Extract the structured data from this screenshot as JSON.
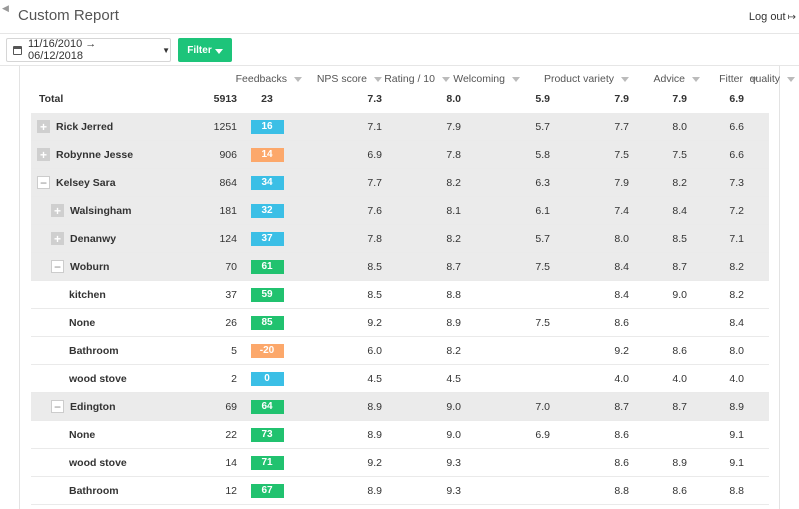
{
  "header": {
    "back_icon": "chevron-left-icon",
    "title": "Custom Report",
    "logout_label": "Log out",
    "logout_icon": "sign-out-icon"
  },
  "toolbar": {
    "date_range": "11/16/2010 → 06/12/2018",
    "filter_label": "Filter",
    "filter_button_color": "#1dc47a"
  },
  "columns": [
    "Feedbacks",
    "NPS score",
    "Rating / 10",
    "Welcoming",
    "Product variety",
    "Advice",
    "Fitter",
    "quality"
  ],
  "total": {
    "label": "Total",
    "feedbacks": "5913",
    "nps": "23",
    "rating": "7.3",
    "welcoming": "8.0",
    "variety": "5.9",
    "advice": "7.9",
    "fitter": "7.9",
    "quality": "6.9"
  },
  "nps_colors": {
    "blue": "#3bbfe6",
    "orange": "#fca86b",
    "green": "#21c26f"
  },
  "rows": [
    {
      "name": "Rick Jerred",
      "level": 0,
      "expander": "plus",
      "feedbacks": "1251",
      "nps": "16",
      "nps_color": "blue",
      "rating": "7.1",
      "welcoming": "7.9",
      "variety": "5.7",
      "advice": "7.7",
      "fitter": "8.0",
      "quality": "6.6"
    },
    {
      "name": "Robynne Jesse",
      "level": 0,
      "expander": "plus",
      "feedbacks": "906",
      "nps": "14",
      "nps_color": "orange",
      "rating": "6.9",
      "welcoming": "7.8",
      "variety": "5.8",
      "advice": "7.5",
      "fitter": "7.5",
      "quality": "6.6"
    },
    {
      "name": "Kelsey Sara",
      "level": 0,
      "expander": "minus",
      "feedbacks": "864",
      "nps": "34",
      "nps_color": "blue",
      "rating": "7.7",
      "welcoming": "8.2",
      "variety": "6.3",
      "advice": "7.9",
      "fitter": "8.2",
      "quality": "7.3"
    },
    {
      "name": "Walsingham",
      "level": 1,
      "expander": "plus",
      "feedbacks": "181",
      "nps": "32",
      "nps_color": "blue",
      "rating": "7.6",
      "welcoming": "8.1",
      "variety": "6.1",
      "advice": "7.4",
      "fitter": "8.4",
      "quality": "7.2"
    },
    {
      "name": "Denanwy",
      "level": 1,
      "expander": "plus",
      "feedbacks": "124",
      "nps": "37",
      "nps_color": "blue",
      "rating": "7.8",
      "welcoming": "8.2",
      "variety": "5.7",
      "advice": "8.0",
      "fitter": "8.5",
      "quality": "7.1"
    },
    {
      "name": "Woburn",
      "level": 1,
      "expander": "minus",
      "feedbacks": "70",
      "nps": "61",
      "nps_color": "green",
      "rating": "8.5",
      "welcoming": "8.7",
      "variety": "7.5",
      "advice": "8.4",
      "fitter": "8.7",
      "quality": "8.2"
    },
    {
      "name": "kitchen",
      "level": 2,
      "expander": "",
      "feedbacks": "37",
      "nps": "59",
      "nps_color": "green",
      "rating": "8.5",
      "welcoming": "8.8",
      "variety": "",
      "advice": "8.4",
      "fitter": "9.0",
      "quality": "8.2"
    },
    {
      "name": "None",
      "level": 2,
      "expander": "",
      "feedbacks": "26",
      "nps": "85",
      "nps_color": "green",
      "rating": "9.2",
      "welcoming": "8.9",
      "variety": "7.5",
      "advice": "8.6",
      "fitter": "",
      "quality": "8.4"
    },
    {
      "name": "Bathroom",
      "level": 2,
      "expander": "",
      "feedbacks": "5",
      "nps": "-20",
      "nps_color": "orange",
      "rating": "6.0",
      "welcoming": "8.2",
      "variety": "",
      "advice": "9.2",
      "fitter": "8.6",
      "quality": "8.0"
    },
    {
      "name": "wood stove",
      "level": 2,
      "expander": "",
      "feedbacks": "2",
      "nps": "0",
      "nps_color": "blue",
      "rating": "4.5",
      "welcoming": "4.5",
      "variety": "",
      "advice": "4.0",
      "fitter": "4.0",
      "quality": "4.0"
    },
    {
      "name": "Edington",
      "level": 1,
      "expander": "minus",
      "feedbacks": "69",
      "nps": "64",
      "nps_color": "green",
      "rating": "8.9",
      "welcoming": "9.0",
      "variety": "7.0",
      "advice": "8.7",
      "fitter": "8.7",
      "quality": "8.9"
    },
    {
      "name": "None",
      "level": 2,
      "expander": "",
      "feedbacks": "22",
      "nps": "73",
      "nps_color": "green",
      "rating": "8.9",
      "welcoming": "9.0",
      "variety": "6.9",
      "advice": "8.6",
      "fitter": "",
      "quality": "9.1"
    },
    {
      "name": "wood stove",
      "level": 2,
      "expander": "",
      "feedbacks": "14",
      "nps": "71",
      "nps_color": "green",
      "rating": "9.2",
      "welcoming": "9.3",
      "variety": "",
      "advice": "8.6",
      "fitter": "8.9",
      "quality": "9.1"
    },
    {
      "name": "Bathroom",
      "level": 2,
      "expander": "",
      "feedbacks": "12",
      "nps": "67",
      "nps_color": "green",
      "rating": "8.9",
      "welcoming": "9.3",
      "variety": "",
      "advice": "8.8",
      "fitter": "8.6",
      "quality": "8.8"
    }
  ]
}
